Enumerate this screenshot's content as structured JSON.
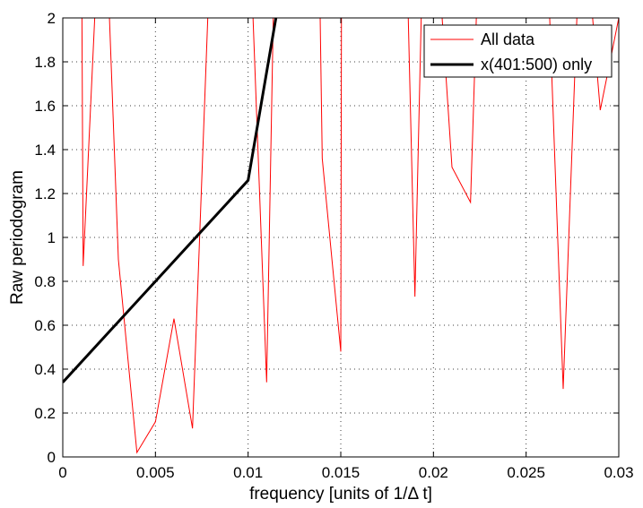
{
  "chart_data": {
    "type": "line",
    "xlabel": "frequency [units of 1/Δ t]",
    "ylabel": "Raw periodogram",
    "xlim": [
      0,
      0.03
    ],
    "ylim": [
      0,
      2
    ],
    "xticks": [
      0,
      0.005,
      0.01,
      0.015,
      0.02,
      0.025,
      0.03
    ],
    "xtick_labels": [
      "0",
      "0.005",
      "0.01",
      "0.015",
      "0.02",
      "0.025",
      "0.03"
    ],
    "yticks": [
      0,
      0.2,
      0.4,
      0.6,
      0.8,
      1,
      1.2,
      1.4,
      1.6,
      1.8,
      2
    ],
    "ytick_labels": [
      "0",
      "0.2",
      "0.4",
      "0.6",
      "0.8",
      "1",
      "1.2",
      "1.4",
      "1.6",
      "1.8",
      "2"
    ],
    "grid": true,
    "legend_position": "top-right",
    "series": [
      {
        "name": "All data",
        "color": "#ff0000",
        "x": [
          0.001,
          0.0011,
          0.002,
          0.0023,
          0.003,
          0.004,
          0.005,
          0.006,
          0.007,
          0.008,
          0.01,
          0.011,
          0.0114,
          0.0138,
          0.014,
          0.015,
          0.01505,
          0.0185,
          0.019,
          0.0195,
          0.02,
          0.021,
          0.022,
          0.0225,
          0.0261,
          0.027,
          0.028,
          0.029,
          0.03
        ],
        "y": [
          2.6,
          0.87,
          2.5,
          2.5,
          0.9,
          0.02,
          0.16,
          0.63,
          0.13,
          2.4,
          2.6,
          0.34,
          2.2,
          2.5,
          1.36,
          0.48,
          2.6,
          2.5,
          0.73,
          2.6,
          2.6,
          1.32,
          1.16,
          2.5,
          2.4,
          0.31,
          2.6,
          1.58,
          2.0
        ]
      },
      {
        "name": "x(401:500) only",
        "color": "#000000",
        "x": [
          0,
          0.01,
          0.0115
        ],
        "y": [
          0.34,
          1.26,
          2.0
        ]
      }
    ]
  }
}
